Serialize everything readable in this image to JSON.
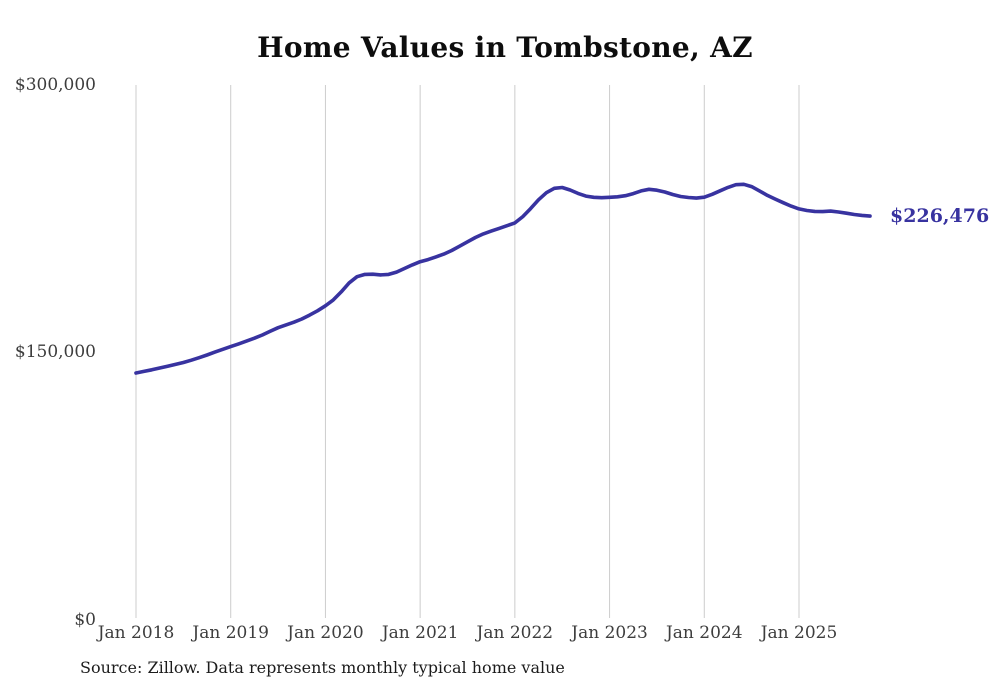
{
  "chart_data": {
    "type": "line",
    "title": "Home Values in Tombstone, AZ",
    "source": "Source: Zillow. Data represents monthly typical home value",
    "series_name": "Typical home value (USD)",
    "end_label": "$226,476",
    "latest_value": 226476,
    "line_color": "#3833A0",
    "grid_color": "#cccccc",
    "grid": "vertical-only",
    "legend": "none",
    "ylim": [
      0,
      300000
    ],
    "y_ticks": [
      {
        "label": "$300,000",
        "value": 300000
      },
      {
        "label": "$150,000",
        "value": 150000
      },
      {
        "label": "$0",
        "value": 0
      }
    ],
    "x_ticks": [
      "Jan 2018",
      "Jan 2019",
      "Jan 2020",
      "Jan 2021",
      "Jan 2022",
      "Jan 2023",
      "Jan 2024",
      "Jan 2025"
    ],
    "frequency": "monthly",
    "months": [
      "2018-01",
      "2018-02",
      "2018-03",
      "2018-04",
      "2018-05",
      "2018-06",
      "2018-07",
      "2018-08",
      "2018-09",
      "2018-10",
      "2018-11",
      "2018-12",
      "2019-01",
      "2019-02",
      "2019-03",
      "2019-04",
      "2019-05",
      "2019-06",
      "2019-07",
      "2019-08",
      "2019-09",
      "2019-10",
      "2019-11",
      "2019-12",
      "2020-01",
      "2020-02",
      "2020-03",
      "2020-04",
      "2020-05",
      "2020-06",
      "2020-07",
      "2020-08",
      "2020-09",
      "2020-10",
      "2020-11",
      "2020-12",
      "2021-01",
      "2021-02",
      "2021-03",
      "2021-04",
      "2021-05",
      "2021-06",
      "2021-07",
      "2021-08",
      "2021-09",
      "2021-10",
      "2021-11",
      "2021-12",
      "2022-01",
      "2022-02",
      "2022-03",
      "2022-04",
      "2022-05",
      "2022-06",
      "2022-07",
      "2022-08",
      "2022-09",
      "2022-10",
      "2022-11",
      "2022-12",
      "2023-01",
      "2023-02",
      "2023-03",
      "2023-04",
      "2023-05",
      "2023-06",
      "2023-07",
      "2023-08",
      "2023-09",
      "2023-10",
      "2023-11",
      "2023-12",
      "2024-01",
      "2024-02",
      "2024-03",
      "2024-04",
      "2024-05",
      "2024-06",
      "2024-07",
      "2024-08",
      "2024-09",
      "2024-10",
      "2024-11",
      "2024-12",
      "2025-01",
      "2025-02",
      "2025-03",
      "2025-04",
      "2025-05",
      "2025-06",
      "2025-07",
      "2025-08",
      "2025-09",
      "2025-10"
    ],
    "values": [
      138500,
      139400,
      140300,
      141300,
      142300,
      143300,
      144400,
      145700,
      147100,
      148600,
      150200,
      151800,
      153300,
      154800,
      156400,
      158000,
      159800,
      161900,
      163900,
      165500,
      167000,
      168800,
      171000,
      173400,
      176200,
      179500,
      184000,
      189000,
      192500,
      193800,
      193900,
      193500,
      193800,
      195100,
      197100,
      199100,
      200900,
      202100,
      203600,
      205200,
      207200,
      209600,
      212100,
      214500,
      216500,
      218100,
      219600,
      221100,
      222700,
      226200,
      230700,
      235600,
      239600,
      242100,
      242500,
      241100,
      239200,
      237700,
      237000,
      236800,
      237000,
      237300,
      237900,
      239100,
      240600,
      241500,
      241000,
      240000,
      238600,
      237500,
      236900,
      236600,
      237100,
      238700,
      240700,
      242600,
      244100,
      244300,
      243000,
      240600,
      238100,
      236000,
      234000,
      232100,
      230500,
      229600,
      229100,
      229000,
      229300,
      228800,
      228100,
      227400,
      226900,
      226476
    ]
  }
}
